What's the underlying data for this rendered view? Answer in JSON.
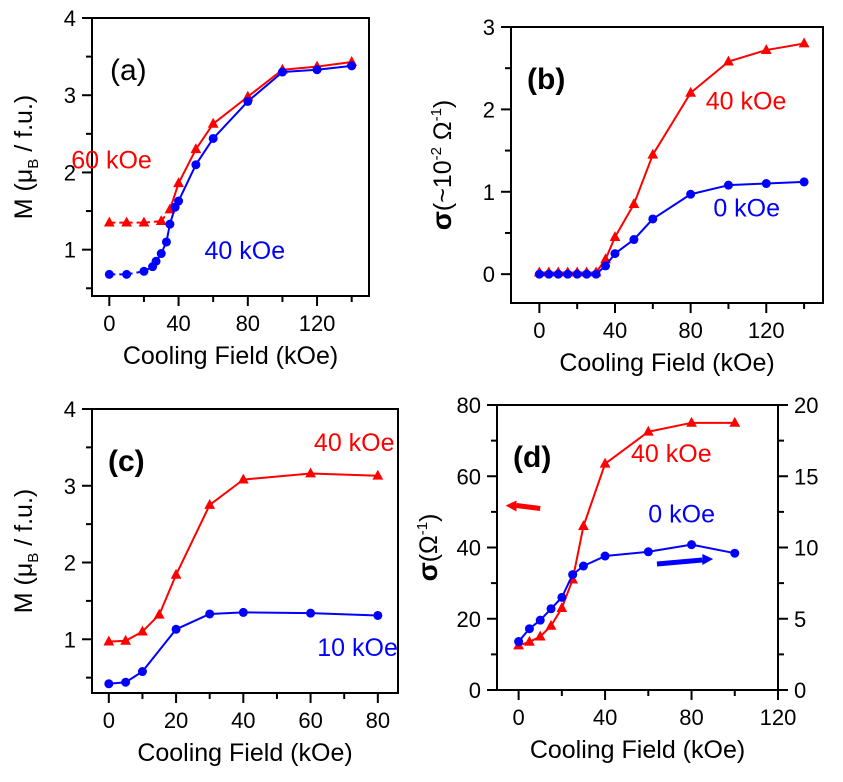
{
  "chart_data": [
    {
      "panel": "(a)",
      "panel_bold": false,
      "type": "line",
      "xlabel": "Cooling Field (kOe)",
      "ylabel": {
        "main": "M (μ",
        "sub": "B",
        "end": " / f.u.)"
      },
      "xlim": [
        -10,
        150
      ],
      "ylim": [
        0.4,
        4
      ],
      "xticks": [
        0,
        40,
        80,
        120
      ],
      "yticks": [
        1,
        2,
        3,
        4
      ],
      "series": [
        {
          "name": "60 kOe",
          "color": "#ff0000",
          "marker": "triangle",
          "dashed_segments": [
            0,
            1,
            2,
            3
          ],
          "x": [
            0,
            10,
            20,
            30,
            35,
            40,
            50,
            60,
            80,
            100,
            120,
            140
          ],
          "y": [
            1.35,
            1.35,
            1.35,
            1.37,
            1.52,
            1.86,
            2.3,
            2.63,
            2.98,
            3.33,
            3.37,
            3.43
          ]
        },
        {
          "name": "40 kOe",
          "color": "#0000ff",
          "marker": "circle",
          "dashed_segments": [
            0,
            1,
            2
          ],
          "x": [
            0,
            10,
            20,
            25,
            27,
            30,
            33,
            35,
            38,
            40,
            50,
            60,
            80,
            100,
            120,
            140
          ],
          "y": [
            0.68,
            0.68,
            0.72,
            0.78,
            0.85,
            0.95,
            1.1,
            1.33,
            1.55,
            1.63,
            2.1,
            2.44,
            2.92,
            3.3,
            3.33,
            3.38
          ]
        }
      ],
      "annotations": [
        {
          "text": "60 kOe",
          "color": "#ff0000",
          "x": -22,
          "y": 2.05
        },
        {
          "text": "40 kOe",
          "color": "#0000ff",
          "x": 55,
          "y": 0.88
        }
      ]
    },
    {
      "panel": "(b)",
      "panel_bold": true,
      "type": "line",
      "xlabel": "Cooling Field (kOe)",
      "ylabel": {
        "pre": "σ",
        "main": "(~10",
        "sup": "-2",
        "mid": " Ω",
        "sup2": "-1",
        "end": ")"
      },
      "xlim": [
        -15,
        150
      ],
      "ylim": [
        -0.35,
        3
      ],
      "xticks": [
        0,
        40,
        80,
        120
      ],
      "yticks": [
        0,
        1,
        2,
        3
      ],
      "series": [
        {
          "name": "40 kOe",
          "color": "#ff0000",
          "marker": "triangle",
          "x": [
            0,
            5,
            10,
            15,
            20,
            25,
            30,
            35,
            40,
            50,
            60,
            80,
            100,
            120,
            140
          ],
          "y": [
            0.02,
            0.02,
            0.02,
            0.02,
            0.02,
            0.02,
            0.02,
            0.18,
            0.45,
            0.85,
            1.45,
            2.2,
            2.58,
            2.72,
            2.8
          ]
        },
        {
          "name": "0 kOe",
          "color": "#0000ff",
          "marker": "circle",
          "x": [
            0,
            5,
            10,
            15,
            20,
            25,
            30,
            35,
            40,
            50,
            60,
            80,
            100,
            120,
            140
          ],
          "y": [
            0,
            0,
            0,
            0,
            0,
            0,
            0,
            0.1,
            0.25,
            0.42,
            0.67,
            0.97,
            1.08,
            1.1,
            1.12
          ]
        }
      ],
      "annotations": [
        {
          "text": "40 kOe",
          "color": "#ff0000",
          "x": 88,
          "y": 2.0
        },
        {
          "text": "0 kOe",
          "color": "#0000ff",
          "x": 92,
          "y": 0.7
        }
      ]
    },
    {
      "panel": "(c)",
      "panel_bold": true,
      "type": "line",
      "xlabel": "Cooling Field (kOe)",
      "ylabel": {
        "main": "M (μ",
        "sub": "B",
        "end": " / f.u.)"
      },
      "xlim": [
        -5,
        86
      ],
      "ylim": [
        0.3,
        4
      ],
      "xticks": [
        0,
        20,
        40,
        60,
        80
      ],
      "yticks": [
        1,
        2,
        3,
        4
      ],
      "series": [
        {
          "name": "40 kOe",
          "color": "#ff0000",
          "marker": "triangle",
          "x": [
            0,
            5,
            10,
            15,
            20,
            30,
            40,
            60,
            80
          ],
          "y": [
            0.97,
            0.98,
            1.1,
            1.32,
            1.84,
            2.75,
            3.08,
            3.16,
            3.13
          ]
        },
        {
          "name": "10 kOe",
          "color": "#0000ff",
          "marker": "circle",
          "x": [
            0,
            5,
            10,
            20,
            30,
            40,
            60,
            80
          ],
          "y": [
            0.42,
            0.44,
            0.58,
            1.13,
            1.33,
            1.35,
            1.34,
            1.31
          ]
        }
      ],
      "annotations": [
        {
          "text": "40 kOe",
          "color": "#ff0000",
          "x": 61,
          "y": 3.45
        },
        {
          "text": "10 kOe",
          "color": "#0000ff",
          "x": 62,
          "y": 0.78
        }
      ]
    },
    {
      "panel": "(d)",
      "panel_bold": true,
      "type": "line",
      "xlabel": "Cooling Field (kOe)",
      "ylabel": {
        "pre": "σ",
        "main": "(Ω",
        "sup": "-1",
        "end": ")"
      },
      "xlim": [
        -10,
        120
      ],
      "ylim": [
        0,
        80
      ],
      "y2lim": [
        0,
        20
      ],
      "xticks": [
        0,
        40,
        80,
        120
      ],
      "yticks": [
        0,
        20,
        40,
        60,
        80
      ],
      "y2ticks": [
        0,
        5,
        10,
        15,
        20
      ],
      "series": [
        {
          "name": "40 kOe",
          "color": "#ff0000",
          "marker": "triangle",
          "axis": "left",
          "x": [
            0,
            5,
            10,
            15,
            20,
            25,
            30,
            40,
            60,
            80,
            100
          ],
          "y": [
            12.5,
            13.5,
            15,
            18,
            23,
            31,
            46,
            63.5,
            72.5,
            75,
            75
          ]
        },
        {
          "name": "0 kOe",
          "color": "#0000ff",
          "marker": "circle",
          "axis": "right",
          "x": [
            0,
            5,
            10,
            15,
            20,
            25,
            30,
            40,
            60,
            80,
            100
          ],
          "y": [
            3.4,
            4.3,
            4.9,
            5.7,
            6.5,
            8.1,
            8.7,
            9.4,
            9.7,
            10.2,
            9.6
          ]
        }
      ],
      "annotations": [
        {
          "text": "40 kOe",
          "color": "#ff0000",
          "x": 52,
          "y": 64
        },
        {
          "text": "0 kOe",
          "color": "#0000ff",
          "x": 60,
          "y": 47
        }
      ],
      "arrows": [
        {
          "direction": "left",
          "color": "#ff0000",
          "axis": "left"
        },
        {
          "direction": "right",
          "color": "#0000ff",
          "axis": "right"
        }
      ]
    }
  ]
}
